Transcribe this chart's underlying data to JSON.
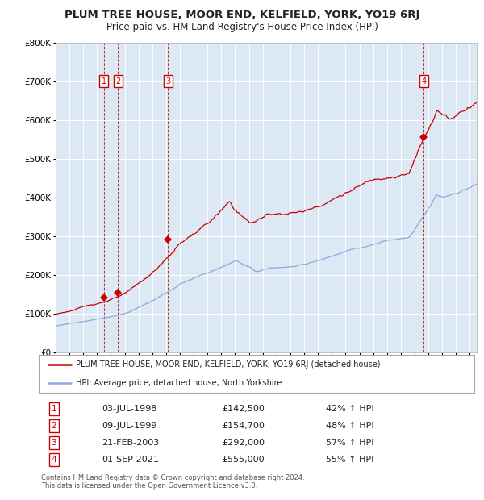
{
  "title": "PLUM TREE HOUSE, MOOR END, KELFIELD, YORK, YO19 6RJ",
  "subtitle": "Price paid vs. HM Land Registry's House Price Index (HPI)",
  "title_fontsize": 9.5,
  "subtitle_fontsize": 8.5,
  "plot_bg_color": "#dce9f5",
  "grid_color": "#ffffff",
  "transactions": [
    {
      "num": 1,
      "date_num": 1998.5,
      "price": 142500,
      "label": "03-JUL-1998",
      "pct": "42%"
    },
    {
      "num": 2,
      "date_num": 1999.52,
      "price": 154700,
      "label": "09-JUL-1999",
      "pct": "48%"
    },
    {
      "num": 3,
      "date_num": 2003.14,
      "price": 292000,
      "label": "21-FEB-2003",
      "pct": "57%"
    },
    {
      "num": 4,
      "date_num": 2021.67,
      "price": 555000,
      "label": "01-SEP-2021",
      "pct": "55%"
    }
  ],
  "hpi_line_color": "#88aadd",
  "price_line_color": "#cc0000",
  "legend_entries": [
    "PLUM TREE HOUSE, MOOR END, KELFIELD, YORK, YO19 6RJ (detached house)",
    "HPI: Average price, detached house, North Yorkshire"
  ],
  "footer": "Contains HM Land Registry data © Crown copyright and database right 2024.\nThis data is licensed under the Open Government Licence v3.0.",
  "ylim": [
    0,
    800000
  ],
  "yticks": [
    0,
    100000,
    200000,
    300000,
    400000,
    500000,
    600000,
    700000,
    800000
  ],
  "xlim_start": 1995.0,
  "xlim_end": 2025.5,
  "xticks": [
    1995,
    1996,
    1997,
    1998,
    1999,
    2000,
    2001,
    2002,
    2003,
    2004,
    2005,
    2006,
    2007,
    2008,
    2009,
    2010,
    2011,
    2012,
    2013,
    2014,
    2015,
    2016,
    2017,
    2018,
    2019,
    2020,
    2021,
    2022,
    2023,
    2024,
    2025
  ],
  "table_data": [
    [
      "1",
      "03-JUL-1998",
      "£142,500",
      "42% ↑ HPI"
    ],
    [
      "2",
      "09-JUL-1999",
      "£154,700",
      "48% ↑ HPI"
    ],
    [
      "3",
      "21-FEB-2003",
      "£292,000",
      "57% ↑ HPI"
    ],
    [
      "4",
      "01-SEP-2021",
      "£555,000",
      "55% ↑ HPI"
    ]
  ]
}
